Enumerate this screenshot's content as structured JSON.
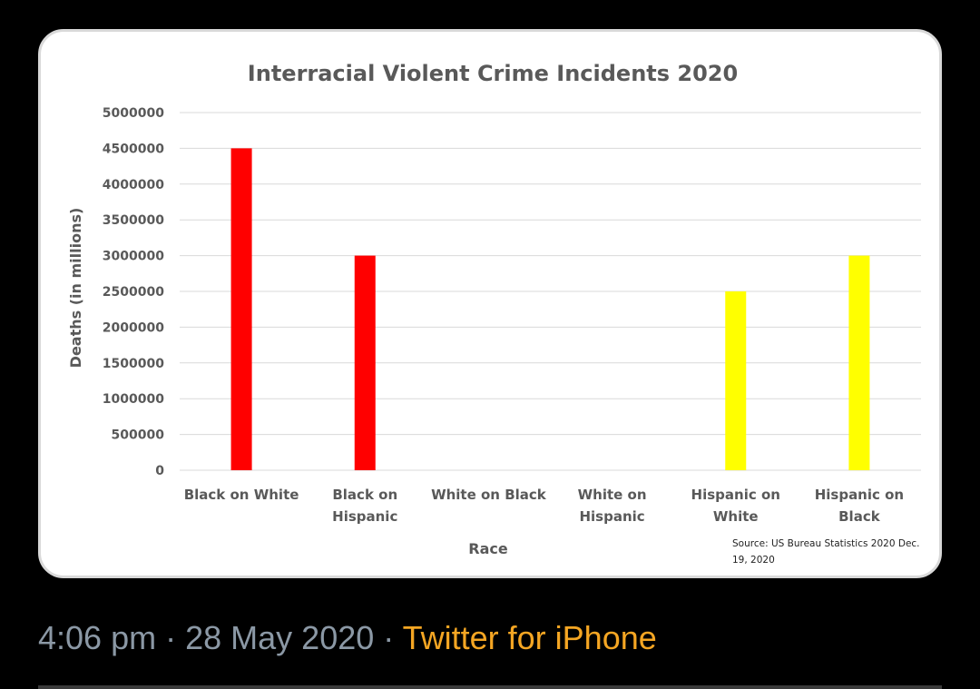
{
  "tweet": {
    "time": "4:06 pm",
    "separator": "·",
    "date": "28 May 2020",
    "source": "Twitter for iPhone"
  },
  "chart_data": {
    "type": "bar",
    "title": "Interracial Violent Crime Incidents 2020",
    "xlabel": "Race",
    "ylabel": "Deaths (in millions)",
    "ylim": [
      0,
      5000000
    ],
    "yticks": [
      "0",
      "500000",
      "1000000",
      "1500000",
      "2000000",
      "2500000",
      "3000000",
      "3500000",
      "4000000",
      "4500000",
      "5000000"
    ],
    "grid": true,
    "categories": [
      [
        "Black on White"
      ],
      [
        "Black on",
        "Hispanic"
      ],
      [
        "White on Black"
      ],
      [
        "White on",
        "Hispanic"
      ],
      [
        "Hispanic on",
        "White"
      ],
      [
        "Hispanic on",
        "Black"
      ]
    ],
    "values": [
      4500000,
      3000000,
      0,
      0,
      2500000,
      3000000
    ],
    "bar_colors": [
      "#ff0000",
      "#ff0000",
      "#ff0000",
      "#ff0000",
      "#ffff00",
      "#ffff00"
    ],
    "annotation": [
      "Source: US Bureau Statistics 2020 Dec.",
      "19, 2020"
    ]
  }
}
